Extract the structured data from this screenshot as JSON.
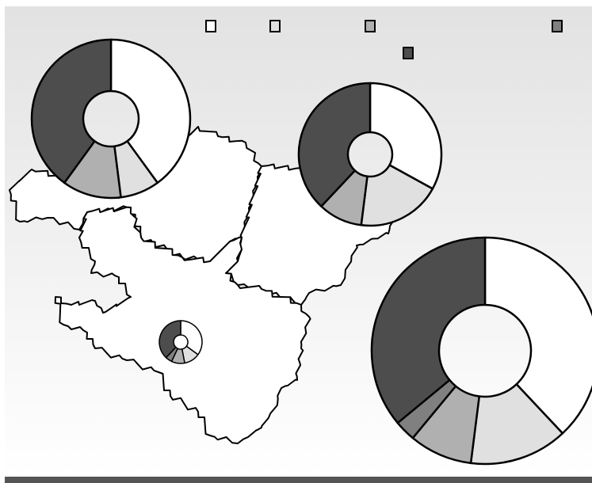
{
  "legend": {
    "colors": [
      "#ffffff",
      "#e0e0e0",
      "#b0b0b0",
      "#808080",
      "#4d4d4d"
    ]
  },
  "chart_data": [
    {
      "type": "donut",
      "values": [
        40,
        8,
        12,
        40
      ],
      "colors": [
        "#ffffff",
        "#e0e0e0",
        "#b0b0b0",
        "#4d4d4d"
      ]
    },
    {
      "type": "donut",
      "values": [
        33,
        19,
        10,
        38
      ],
      "colors": [
        "#ffffff",
        "#e0e0e0",
        "#b0b0b0",
        "#4d4d4d"
      ]
    },
    {
      "type": "donut",
      "values": [
        38,
        14,
        9,
        3,
        36
      ],
      "colors": [
        "#ffffff",
        "#e0e0e0",
        "#b0b0b0",
        "#808080",
        "#4d4d4d"
      ]
    },
    {
      "type": "donut",
      "values": [
        35,
        12,
        10,
        5,
        38
      ],
      "colors": [
        "#ffffff",
        "#e0e0e0",
        "#b0b0b0",
        "#808080",
        "#4d4d4d"
      ]
    }
  ]
}
